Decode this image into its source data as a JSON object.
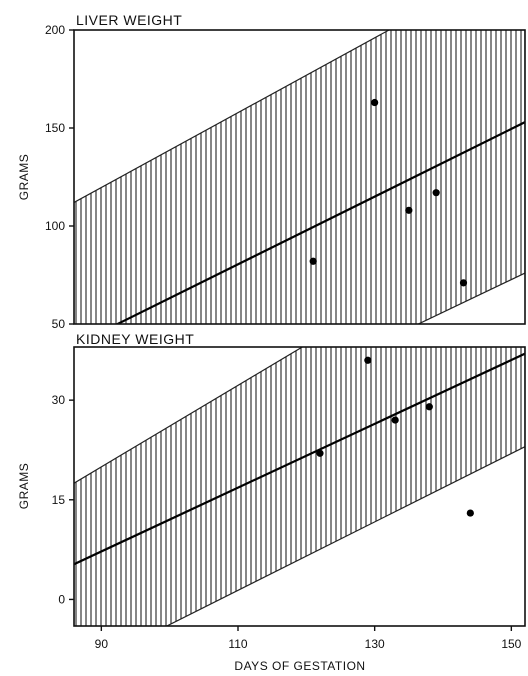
{
  "chart_data": [
    {
      "type": "scatter",
      "title": "LIVER WEIGHT",
      "xlabel": "",
      "ylabel": "GRAMS",
      "xlim": [
        86,
        152
      ],
      "ylim": [
        50,
        200
      ],
      "yticks": [
        50,
        100,
        150,
        200
      ],
      "ytick_labels": [
        "50",
        "100",
        "150",
        "200"
      ],
      "points": [
        {
          "x": 121,
          "y": 82
        },
        {
          "x": 130,
          "y": 163
        },
        {
          "x": 135,
          "y": 108
        },
        {
          "x": 139,
          "y": 117
        },
        {
          "x": 143,
          "y": 71
        }
      ],
      "regression_line": {
        "x": [
          86,
          152
        ],
        "y": [
          39,
          153
        ]
      },
      "confidence_band": {
        "upper": {
          "x": [
            86,
            152
          ],
          "y": [
            112,
            238
          ]
        },
        "lower": {
          "x": [
            86,
            152
          ],
          "y": [
            -34,
            76
          ]
        }
      }
    },
    {
      "type": "scatter",
      "title": "KIDNEY WEIGHT",
      "xlabel": "DAYS OF GESTATION",
      "ylabel": "GRAMS",
      "xlim": [
        86,
        152
      ],
      "ylim": [
        -4,
        38
      ],
      "yticks": [
        0,
        15,
        30
      ],
      "ytick_labels": [
        "0",
        "15",
        "30"
      ],
      "xticks": [
        90,
        110,
        130,
        150
      ],
      "xtick_labels": [
        "90",
        "110",
        "130",
        "150"
      ],
      "points": [
        {
          "x": 122,
          "y": 22
        },
        {
          "x": 129,
          "y": 36
        },
        {
          "x": 133,
          "y": 27
        },
        {
          "x": 138,
          "y": 29
        },
        {
          "x": 144,
          "y": 13
        }
      ],
      "regression_line": {
        "x": [
          86,
          152
        ],
        "y": [
          5.3,
          37
        ]
      },
      "confidence_band": {
        "upper": {
          "x": [
            86,
            152
          ],
          "y": [
            17.5,
            58
          ]
        },
        "lower": {
          "x": [
            86,
            152
          ],
          "y": [
            -11,
            23
          ]
        }
      }
    }
  ]
}
